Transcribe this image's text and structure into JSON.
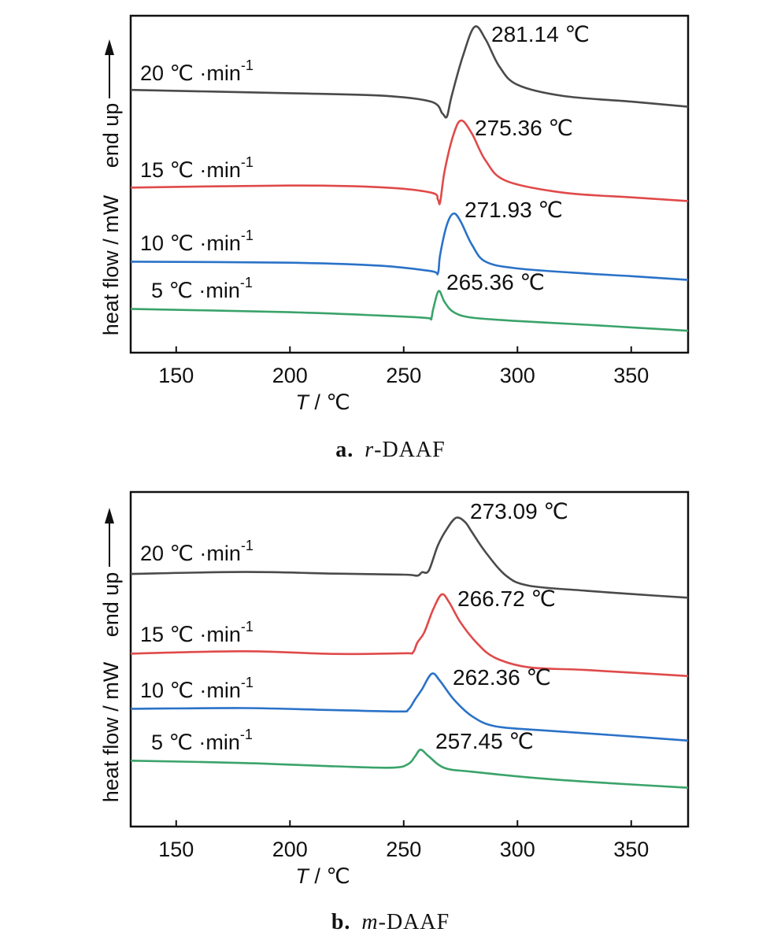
{
  "colors": {
    "s20": "#4a4a4a",
    "s15": "#e04a4a",
    "s10": "#2a72c8",
    "s5": "#3aa36a"
  },
  "chart_data": [
    {
      "type": "line",
      "caption_label": "a.",
      "caption_prefix": "r",
      "caption_suffix": "-DAAF",
      "xlabel_var": "T",
      "xlabel_unit": " / ℃",
      "ylabel_main": "heat flow / mW",
      "ylabel_dir": "end up",
      "xlim": [
        130,
        375
      ],
      "xticks": [
        150,
        200,
        250,
        300,
        350
      ],
      "ylim": [
        0,
        100
      ],
      "series": [
        {
          "name": "20 ℃ ·min",
          "sup": "-1",
          "color_key": "s20",
          "peak_label": "281.14 ℃",
          "points": [
            [
              130,
              78
            ],
            [
              200,
              77
            ],
            [
              240,
              76.3
            ],
            [
              262,
              74.5
            ],
            [
              267,
              71
            ],
            [
              269,
              70.1
            ],
            [
              271,
              76
            ],
            [
              276,
              88
            ],
            [
              281.14,
              96.7
            ],
            [
              286,
              93
            ],
            [
              292,
              85
            ],
            [
              300,
              79.5
            ],
            [
              320,
              76.2
            ],
            [
              350,
              74.5
            ],
            [
              375,
              73
            ]
          ]
        },
        {
          "name": "15 ℃ ·min",
          "sup": "-1",
          "color_key": "s15",
          "peak_label": "275.36 ℃",
          "points": [
            [
              130,
              49
            ],
            [
              200,
              49.6
            ],
            [
              240,
              49.1
            ],
            [
              262,
              47.5
            ],
            [
              265,
              45.5
            ],
            [
              266,
              44.6
            ],
            [
              268,
              54
            ],
            [
              272,
              65
            ],
            [
              275.36,
              68.9
            ],
            [
              280,
              65
            ],
            [
              286,
              57
            ],
            [
              295,
              51
            ],
            [
              320,
              47.5
            ],
            [
              350,
              46.1
            ],
            [
              375,
              45
            ]
          ]
        },
        {
          "name": "10 ℃ ·min",
          "sup": "-1",
          "color_key": "s10",
          "peak_label": "271.93 ℃",
          "points": [
            [
              130,
              27
            ],
            [
              200,
              26.7
            ],
            [
              240,
              25.8
            ],
            [
              262,
              24.2
            ],
            [
              265,
              23.5
            ],
            [
              266,
              29
            ],
            [
              269,
              38
            ],
            [
              271.93,
              41.3
            ],
            [
              275,
              39
            ],
            [
              280,
              32
            ],
            [
              286,
              27
            ],
            [
              300,
              25
            ],
            [
              330,
              23.5
            ],
            [
              350,
              22.7
            ],
            [
              375,
              21.6
            ]
          ]
        },
        {
          "name": "5 ℃ ·min",
          "sup": "-1",
          "color_key": "s5",
          "peak_label": "265.36 ℃",
          "points": [
            [
              130,
              13
            ],
            [
              200,
              12
            ],
            [
              240,
              11
            ],
            [
              260,
              10.3
            ],
            [
              262,
              10
            ],
            [
              263,
              13
            ],
            [
              265.36,
              18.3
            ],
            [
              268,
              15
            ],
            [
              272,
              12
            ],
            [
              280,
              10.4
            ],
            [
              300,
              9.4
            ],
            [
              330,
              8.3
            ],
            [
              350,
              7.5
            ],
            [
              375,
              6.5
            ]
          ]
        }
      ]
    },
    {
      "type": "line",
      "caption_label": "b.",
      "caption_prefix": "m",
      "caption_suffix": "-DAAF",
      "xlabel_var": "T",
      "xlabel_unit": " / ℃",
      "ylabel_main": "heat flow / mW",
      "ylabel_dir": "end up",
      "xlim": [
        130,
        375
      ],
      "xticks": [
        150,
        200,
        250,
        300,
        350
      ],
      "ylim": [
        0,
        100
      ],
      "series": [
        {
          "name": "20 ℃ ·min",
          "sup": "-1",
          "color_key": "s20",
          "peak_label": "273.09 ℃",
          "points": [
            [
              130,
              75.5
            ],
            [
              180,
              76.1
            ],
            [
              220,
              75.6
            ],
            [
              250,
              75.3
            ],
            [
              256,
              75
            ],
            [
              258,
              76
            ],
            [
              261,
              76.5
            ],
            [
              265,
              84
            ],
            [
              269,
              89
            ],
            [
              273.09,
              92.3
            ],
            [
              277,
              91
            ],
            [
              280,
              88
            ],
            [
              286,
              82
            ],
            [
              295,
              75
            ],
            [
              305,
              72
            ],
            [
              330,
              70.5
            ],
            [
              350,
              69.5
            ],
            [
              375,
              68.4
            ]
          ]
        },
        {
          "name": "15 ℃ ·min",
          "sup": "-1",
          "color_key": "s15",
          "peak_label": "266.72 ℃",
          "points": [
            [
              130,
              51.7
            ],
            [
              180,
              52.4
            ],
            [
              220,
              51.6
            ],
            [
              250,
              51.8
            ],
            [
              254,
              52
            ],
            [
              256,
              55
            ],
            [
              259,
              58
            ],
            [
              263,
              65
            ],
            [
              266.72,
              69.4
            ],
            [
              270,
              67
            ],
            [
              275,
              61
            ],
            [
              282,
              55
            ],
            [
              290,
              50.5
            ],
            [
              305,
              47.6
            ],
            [
              330,
              46.8
            ],
            [
              375,
              45
            ]
          ]
        },
        {
          "name": "10 ℃ ·min",
          "sup": "-1",
          "color_key": "s10",
          "peak_label": "262.36 ℃",
          "points": [
            [
              130,
              35.2
            ],
            [
              180,
              35.4
            ],
            [
              220,
              34.8
            ],
            [
              248,
              34.4
            ],
            [
              252,
              35
            ],
            [
              255,
              38
            ],
            [
              258,
              41
            ],
            [
              262.36,
              45.7
            ],
            [
              266,
              43.5
            ],
            [
              272,
              38
            ],
            [
              280,
              33
            ],
            [
              290,
              30
            ],
            [
              310,
              28.8
            ],
            [
              340,
              27.4
            ],
            [
              375,
              25.7
            ]
          ]
        },
        {
          "name": "5 ℃ ·min",
          "sup": "-1",
          "color_key": "s5",
          "peak_label": "257.45 ℃",
          "points": [
            [
              130,
              19.7
            ],
            [
              180,
              19
            ],
            [
              220,
              18
            ],
            [
              245,
              17.6
            ],
            [
              252,
              18.7
            ],
            [
              255,
              21
            ],
            [
              257.45,
              23
            ],
            [
              261,
              21
            ],
            [
              268,
              17.5
            ],
            [
              280,
              16.4
            ],
            [
              310,
              14.4
            ],
            [
              340,
              13
            ],
            [
              375,
              11.6
            ]
          ]
        }
      ]
    }
  ]
}
